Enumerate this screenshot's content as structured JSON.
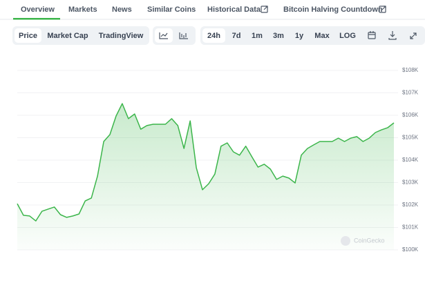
{
  "tabs": [
    "Overview",
    "Markets",
    "News",
    "Similar Coins",
    "Historical Data",
    "Bitcoin Halving Countdown"
  ],
  "chart_types": [
    "Price",
    "Market Cap",
    "TradingView"
  ],
  "ranges": [
    "24h",
    "7d",
    "1m",
    "3m",
    "1y",
    "Max",
    "LOG"
  ],
  "chart_data": {
    "type": "line",
    "color": "#3bb54a",
    "watermark": "CoinGecko",
    "values": [
      102060,
      101540,
      101510,
      101290,
      101720,
      101820,
      101910,
      101570,
      101450,
      101510,
      101600,
      102180,
      102310,
      103290,
      104830,
      105140,
      105970,
      106520,
      105850,
      106060,
      105380,
      105540,
      105600,
      105600,
      105600,
      105850,
      105540,
      104520,
      105750,
      103660,
      102680,
      102950,
      103380,
      104620,
      104770,
      104370,
      104220,
      104620,
      104150,
      103690,
      103820,
      103600,
      103140,
      103290,
      103200,
      102980,
      104220,
      104520,
      104680,
      104830,
      104830,
      104830,
      104980,
      104830,
      104980,
      105050,
      104830,
      104980,
      105230,
      105350,
      105450,
      105660
    ],
    "ylim": [
      100000,
      108000
    ],
    "yticks": [
      {
        "value": 100000,
        "label": "$100K"
      },
      {
        "value": 101000,
        "label": "$101K"
      },
      {
        "value": 102000,
        "label": "$102K"
      },
      {
        "value": 103000,
        "label": "$103K"
      },
      {
        "value": 104000,
        "label": "$104K"
      },
      {
        "value": 105000,
        "label": "$105K"
      },
      {
        "value": 106000,
        "label": "$106K"
      },
      {
        "value": 107000,
        "label": "$107K"
      },
      {
        "value": 108000,
        "label": "$108K"
      }
    ],
    "grid": true
  }
}
